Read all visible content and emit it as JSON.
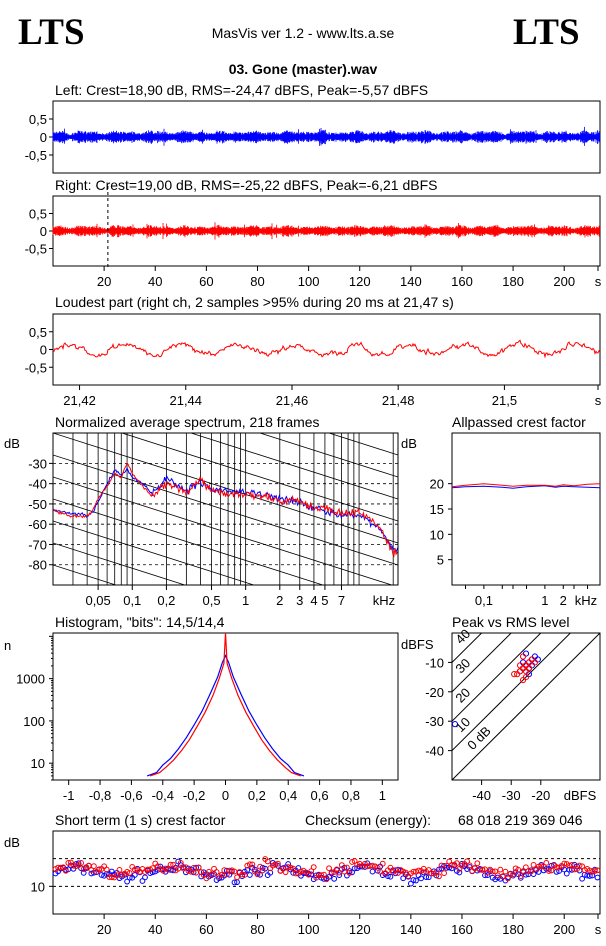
{
  "header": {
    "logo_left": "LTS",
    "logo_right": "LTS",
    "app_title": "MasVis ver 1.2 - www.lts.a.se",
    "file_title": "03. Gone (master).wav"
  },
  "colors": {
    "left": "#0000ff",
    "right": "#ff0000",
    "axis": "#000000"
  },
  "chart_data": [
    {
      "id": "left-waveform",
      "type": "line",
      "title": "Left: Crest=18,90 dB, RMS=-24,47 dBFS, Peak=-5,57 dBFS",
      "series": [
        {
          "name": "Left",
          "color": "#0000ff"
        }
      ],
      "yticks": [
        "0,5",
        "0",
        "-0,5"
      ],
      "ylim": [
        -1,
        1
      ],
      "xlim": [
        0,
        214
      ],
      "rms_dbfs": -24.47,
      "peak_dbfs": -5.57
    },
    {
      "id": "right-waveform",
      "type": "line",
      "title": "Right: Crest=19,00 dB, RMS=-25,22 dBFS, Peak=-6,21 dBFS",
      "series": [
        {
          "name": "Right",
          "color": "#ff0000"
        }
      ],
      "yticks": [
        "0,5",
        "0",
        "-0,5"
      ],
      "ylim": [
        -1,
        1
      ],
      "xlim": [
        0,
        214
      ],
      "xticks": [
        "20",
        "40",
        "60",
        "80",
        "100",
        "120",
        "140",
        "160",
        "180",
        "200",
        "s"
      ],
      "marker_x": 21.47,
      "rms_dbfs": -25.22,
      "peak_dbfs": -6.21
    },
    {
      "id": "loudest-part",
      "type": "line",
      "title": "Loudest part (right ch, 2 samples >95% during 20 ms at 21,47 s)",
      "yticks": [
        "0,5",
        "0",
        "-0,5"
      ],
      "ylim": [
        -1,
        1
      ],
      "xlim": [
        21.415,
        21.518
      ],
      "xticks": [
        "21,42",
        "21,44",
        "21,46",
        "21,48",
        "21,5",
        "s"
      ]
    },
    {
      "id": "spectrum",
      "type": "line",
      "title": "Normalized average spectrum, 218 frames",
      "ylabel": "dB",
      "yticks": [
        "-30",
        "-40",
        "-50",
        "-60",
        "-70",
        "-80"
      ],
      "ylim": [
        -90,
        -15
      ],
      "xlog": true,
      "xlim": [
        0.02,
        22.05
      ],
      "xticks": [
        "0,05",
        "0,1",
        "0,2",
        "0,5",
        "1",
        "2",
        "3",
        "4",
        "5",
        "7",
        "kHz"
      ],
      "series": [
        {
          "name": "Left",
          "color": "#0000ff",
          "x": [
            0.02,
            0.025,
            0.03,
            0.035,
            0.04,
            0.045,
            0.05,
            0.06,
            0.07,
            0.08,
            0.09,
            0.1,
            0.12,
            0.15,
            0.2,
            0.3,
            0.4,
            0.5,
            0.7,
            1,
            1.5,
            2,
            3,
            4,
            5,
            7,
            10,
            15,
            20
          ],
          "y": [
            -53,
            -54,
            -55,
            -55,
            -56,
            -54,
            -49,
            -40,
            -33,
            -36,
            -33,
            -37,
            -39,
            -45,
            -37,
            -44,
            -39,
            -43,
            -44,
            -44,
            -46,
            -47,
            -49,
            -52,
            -53,
            -56,
            -55,
            -62,
            -72
          ]
        },
        {
          "name": "Right",
          "color": "#ff0000",
          "x": [
            0.02,
            0.025,
            0.03,
            0.035,
            0.04,
            0.045,
            0.05,
            0.06,
            0.07,
            0.08,
            0.09,
            0.1,
            0.12,
            0.15,
            0.2,
            0.3,
            0.4,
            0.5,
            0.7,
            1,
            1.5,
            2,
            3,
            4,
            5,
            7,
            10,
            15,
            20
          ],
          "y": [
            -53,
            -55,
            -56,
            -56,
            -56,
            -53,
            -48,
            -41,
            -35,
            -37,
            -30,
            -35,
            -40,
            -47,
            -40,
            -44,
            -38,
            -43,
            -45,
            -45,
            -46,
            -48,
            -49,
            -52,
            -52,
            -55,
            -54,
            -61,
            -74
          ]
        }
      ]
    },
    {
      "id": "allpassed-crest",
      "type": "line",
      "title": "Allpassed crest factor",
      "ylabel": "dB",
      "yticks": [
        "20",
        "15",
        "10",
        "5"
      ],
      "ylim": [
        0,
        30
      ],
      "xlog": true,
      "xlim": [
        0.03,
        8
      ],
      "xticks": [
        "0,1",
        "1",
        "2",
        "kHz"
      ],
      "series": [
        {
          "name": "Left",
          "color": "#0000ff",
          "x": [
            0.03,
            0.05,
            0.1,
            0.2,
            0.3,
            0.5,
            1,
            1.5,
            2,
            3,
            5,
            8
          ],
          "y": [
            19.2,
            19.4,
            19.5,
            19.3,
            19.1,
            19.4,
            19.6,
            19.3,
            19.5,
            19.4,
            19.3,
            19.2
          ]
        },
        {
          "name": "Right",
          "color": "#ff0000",
          "x": [
            0.03,
            0.05,
            0.1,
            0.2,
            0.3,
            0.5,
            1,
            1.5,
            2,
            3,
            5,
            8
          ],
          "y": [
            19.4,
            19.7,
            20.0,
            19.7,
            19.5,
            19.7,
            19.7,
            19.5,
            19.8,
            19.6,
            19.9,
            20.0
          ]
        }
      ]
    },
    {
      "id": "histogram",
      "type": "line",
      "title": "Histogram, \"bits\": 14,5/14,4",
      "ylabel": "n",
      "ylog": true,
      "ylim": [
        4,
        12000
      ],
      "yticks": [
        "1000",
        "100",
        "10"
      ],
      "xlim": [
        -1.1,
        1.1
      ],
      "xticks": [
        "-1",
        "-0,8",
        "-0,6",
        "-0,4",
        "-0,2",
        "0",
        "0,2",
        "0,4",
        "0,6",
        "0,8",
        "1"
      ],
      "series": [
        {
          "name": "Left",
          "color": "#0000ff",
          "x": [
            -0.5,
            -0.44,
            -0.4,
            -0.35,
            -0.3,
            -0.25,
            -0.2,
            -0.15,
            -0.1,
            -0.05,
            -0.02,
            0,
            0.02,
            0.05,
            0.1,
            0.15,
            0.2,
            0.25,
            0.3,
            0.35,
            0.4,
            0.44,
            0.5
          ],
          "y": [
            5,
            6,
            9,
            13,
            22,
            40,
            80,
            170,
            420,
            1100,
            2400,
            3500,
            2400,
            1100,
            420,
            170,
            80,
            40,
            22,
            13,
            9,
            6,
            5
          ]
        },
        {
          "name": "Right",
          "color": "#ff0000",
          "x": [
            -0.48,
            -0.42,
            -0.38,
            -0.33,
            -0.28,
            -0.23,
            -0.18,
            -0.13,
            -0.08,
            -0.04,
            -0.01,
            0,
            0.01,
            0.04,
            0.08,
            0.13,
            0.18,
            0.23,
            0.28,
            0.33,
            0.38,
            0.42,
            0.48
          ],
          "y": [
            5,
            6,
            8,
            12,
            20,
            36,
            75,
            160,
            400,
            1000,
            2300,
            12000,
            2300,
            1000,
            400,
            160,
            75,
            36,
            20,
            12,
            8,
            6,
            5
          ]
        }
      ]
    },
    {
      "id": "peak-vs-rms",
      "type": "scatter",
      "title": "Peak vs RMS level",
      "ylabel": "dBFS",
      "xlabel": "dBFS",
      "xlim": [
        -50,
        0
      ],
      "ylim": [
        -50,
        0
      ],
      "yticks": [
        "-10",
        "-20",
        "-30",
        "-40"
      ],
      "xticks": [
        "-40",
        "-30",
        "-20",
        "dBFS"
      ],
      "crest_lines": [
        "40",
        "30",
        "20",
        "10",
        "0 dB"
      ],
      "series": [
        {
          "name": "Left",
          "color": "#0000ff",
          "x": [
            -26,
            -25,
            -24,
            -23,
            -27,
            -22,
            -24,
            -25,
            -21,
            -23,
            -26,
            -24,
            -49
          ],
          "y": [
            -12,
            -11,
            -10,
            -9,
            -13,
            -8,
            -12,
            -7,
            -9,
            -11,
            -10,
            -14,
            -31
          ]
        },
        {
          "name": "Right",
          "color": "#ff0000",
          "x": [
            -27,
            -26,
            -25,
            -24,
            -28,
            -23,
            -25,
            -26,
            -22,
            -24,
            -27,
            -25,
            -29,
            -26,
            -24
          ],
          "y": [
            -13,
            -12,
            -11,
            -10,
            -14,
            -9,
            -13,
            -8,
            -10,
            -12,
            -11,
            -15,
            -14,
            -16,
            -12
          ]
        }
      ]
    },
    {
      "id": "short-term-crest",
      "type": "scatter",
      "title": "Short term (1 s) crest factor",
      "checksum_label": "Checksum (energy):",
      "checksum_value": "68 018 219 369 046",
      "ylabel": "dB",
      "yticks": [
        "10"
      ],
      "ylim": [
        0,
        30
      ],
      "dashed_levels": [
        10,
        20
      ],
      "xlim": [
        0,
        214
      ],
      "xticks": [
        "20",
        "40",
        "60",
        "80",
        "100",
        "120",
        "140",
        "160",
        "180",
        "200",
        "s"
      ],
      "series": [
        {
          "name": "Left",
          "color": "#0000ff",
          "mean": 15,
          "spread": 3
        },
        {
          "name": "Right",
          "color": "#ff0000",
          "mean": 16,
          "spread": 3
        }
      ]
    }
  ]
}
